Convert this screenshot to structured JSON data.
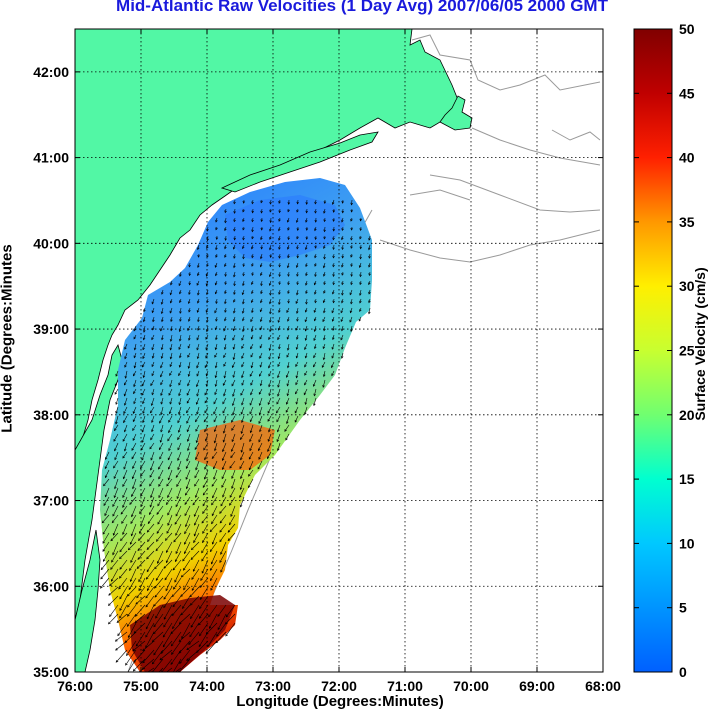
{
  "title": "Mid-Atlantic Raw Velocities (1 Day Avg) 2007/06/05 2000 GMT",
  "axes": {
    "xlabel": "Longitude (Degrees:Minutes)",
    "ylabel": "Latitude (Degrees:Minutes",
    "xticks": [
      "76:00",
      "75:00",
      "74:00",
      "73:00",
      "72:00",
      "71:00",
      "70:00",
      "69:00",
      "68:00"
    ],
    "yticks": [
      "42:00",
      "41:00",
      "40:00",
      "39:00",
      "38:00",
      "37:00",
      "36:00",
      "35:00"
    ]
  },
  "colorbar": {
    "label": "Surface Velocity (cm/s)",
    "ticks": [
      "50",
      "45",
      "40",
      "35",
      "30",
      "25",
      "20",
      "15",
      "10",
      "5",
      "0"
    ],
    "min": 0,
    "max": 50
  },
  "colors": {
    "land": "#52f7a5",
    "title": "#1a1adc",
    "grid": "#000000",
    "coast_outline": "#9a9a9a"
  }
}
